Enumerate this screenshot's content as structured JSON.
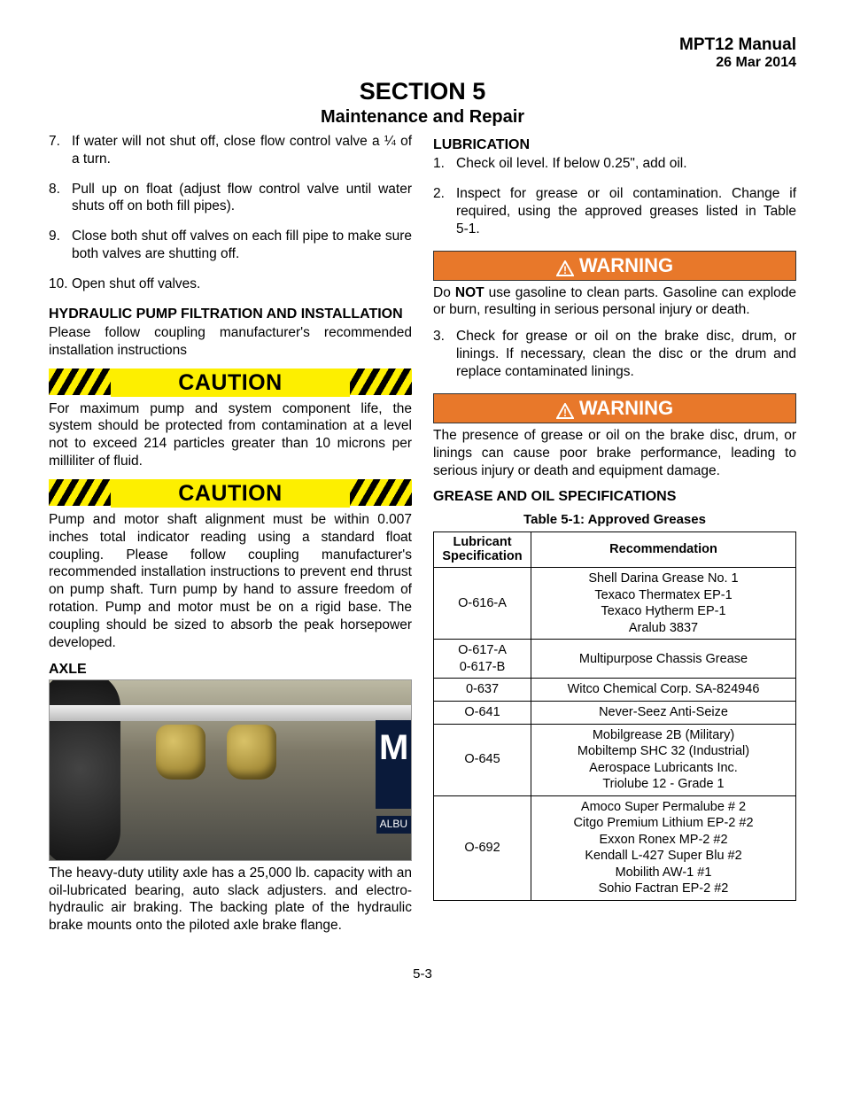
{
  "header": {
    "manual": "MPT12 Manual",
    "date": "26 Mar 2014"
  },
  "section": {
    "title": "SECTION 5",
    "subtitle": "Maintenance and Repair"
  },
  "left": {
    "items": [
      {
        "n": "7.",
        "t": "If water will not shut off, close flow control valve a ¼ of a turn."
      },
      {
        "n": "8.",
        "t": "Pull up on float (adjust flow control valve until water shuts off on both fill pipes)."
      },
      {
        "n": "9.",
        "t": "Close both shut off valves on each fill pipe to make sure both valves are shutting off."
      },
      {
        "n": "10.",
        "t": "Open shut off valves."
      }
    ],
    "hydraulic_h": "HYDRAULIC PUMP FILTRATION AND INSTALLATION",
    "hydraulic_p": "Please follow coupling manufacturer's recommended installation instructions",
    "caution1_label": "CAUTION",
    "caution1_text": "For maximum pump and system component life, the system should be protected from contamination at a level not to exceed 214 particles greater than 10 microns per milliliter of fluid.",
    "caution2_label": "CAUTION",
    "caution2_text": "Pump and motor shaft alignment must be within 0.007 inches total indicator reading using a standard float coupling. Please follow coupling manufacturer's recommended installation instructions to prevent end thrust on pump shaft. Turn pump by hand to assure freedom of rotation. Pump and motor must be on a rigid base. The coupling should be sized to absorb the peak horsepower developed.",
    "axle_h": "AXLE",
    "axle_img_side": "M",
    "axle_img_albu": "ALBU",
    "axle_p": "The heavy-duty utility axle has a 25,000 lb. capacity with an oil-lubricated bearing, auto slack adjusters. and electro-hydraulic air braking. The backing plate of the hydraulic brake mounts onto the piloted axle brake flange."
  },
  "right": {
    "lub_h": "LUBRICATION",
    "items1": [
      {
        "n": "1.",
        "t": "Check oil level. If below 0.25\", add oil."
      },
      {
        "n": "2.",
        "t": "Inspect for grease or oil contamination. Change if required, using the approved greases listed in Table 5‑1."
      }
    ],
    "warn1_label": "WARNING",
    "warn1_pre": "Do ",
    "warn1_bold": "NOT",
    "warn1_post": " use gasoline to clean parts. Gasoline can explode or burn, resulting in serious personal injury or death.",
    "items2": [
      {
        "n": "3.",
        "t": "Check for grease or oil on the brake disc, drum, or linings. If necessary, clean the disc or the drum and replace contaminated linings."
      }
    ],
    "warn2_label": "WARNING",
    "warn2_text": "The presence of grease or oil on the brake disc, drum, or linings can cause poor brake performance, leading to serious injury or death and equipment damage.",
    "grease_h": "GREASE AND OIL SPECIFICATIONS",
    "table_caption": "Table 5-1: Approved Greases",
    "table": {
      "col1": "Lubricant Specification",
      "col2": "Recommendation",
      "rows": [
        {
          "spec": "O-616-A",
          "rec": "Shell Darina Grease No. 1\nTexaco Thermatex EP-1\nTexaco Hytherm EP-1\nAralub 3837"
        },
        {
          "spec": "O-617-A\n0-617-B",
          "rec": "Multipurpose Chassis Grease"
        },
        {
          "spec": "0-637",
          "rec": "Witco Chemical Corp. SA-824946"
        },
        {
          "spec": "O-641",
          "rec": "Never-Seez Anti-Seize"
        },
        {
          "spec": "O-645",
          "rec": "Mobilgrease 2B (Military)\nMobiltemp SHC 32 (Industrial)\nAerospace Lubricants Inc.\nTriolube 12 - Grade 1"
        },
        {
          "spec": "O-692",
          "rec": "Amoco Super Permalube # 2\nCitgo Premium Lithium EP-2 #2\nExxon Ronex MP-2 #2\nKendall L-427 Super Blu #2\nMobilith AW-1 #1\nSohio Factran EP-2 #2"
        }
      ]
    }
  },
  "footer": "5-3",
  "colors": {
    "caution_bg": "#fdef00",
    "warning_bg": "#e8782a"
  }
}
